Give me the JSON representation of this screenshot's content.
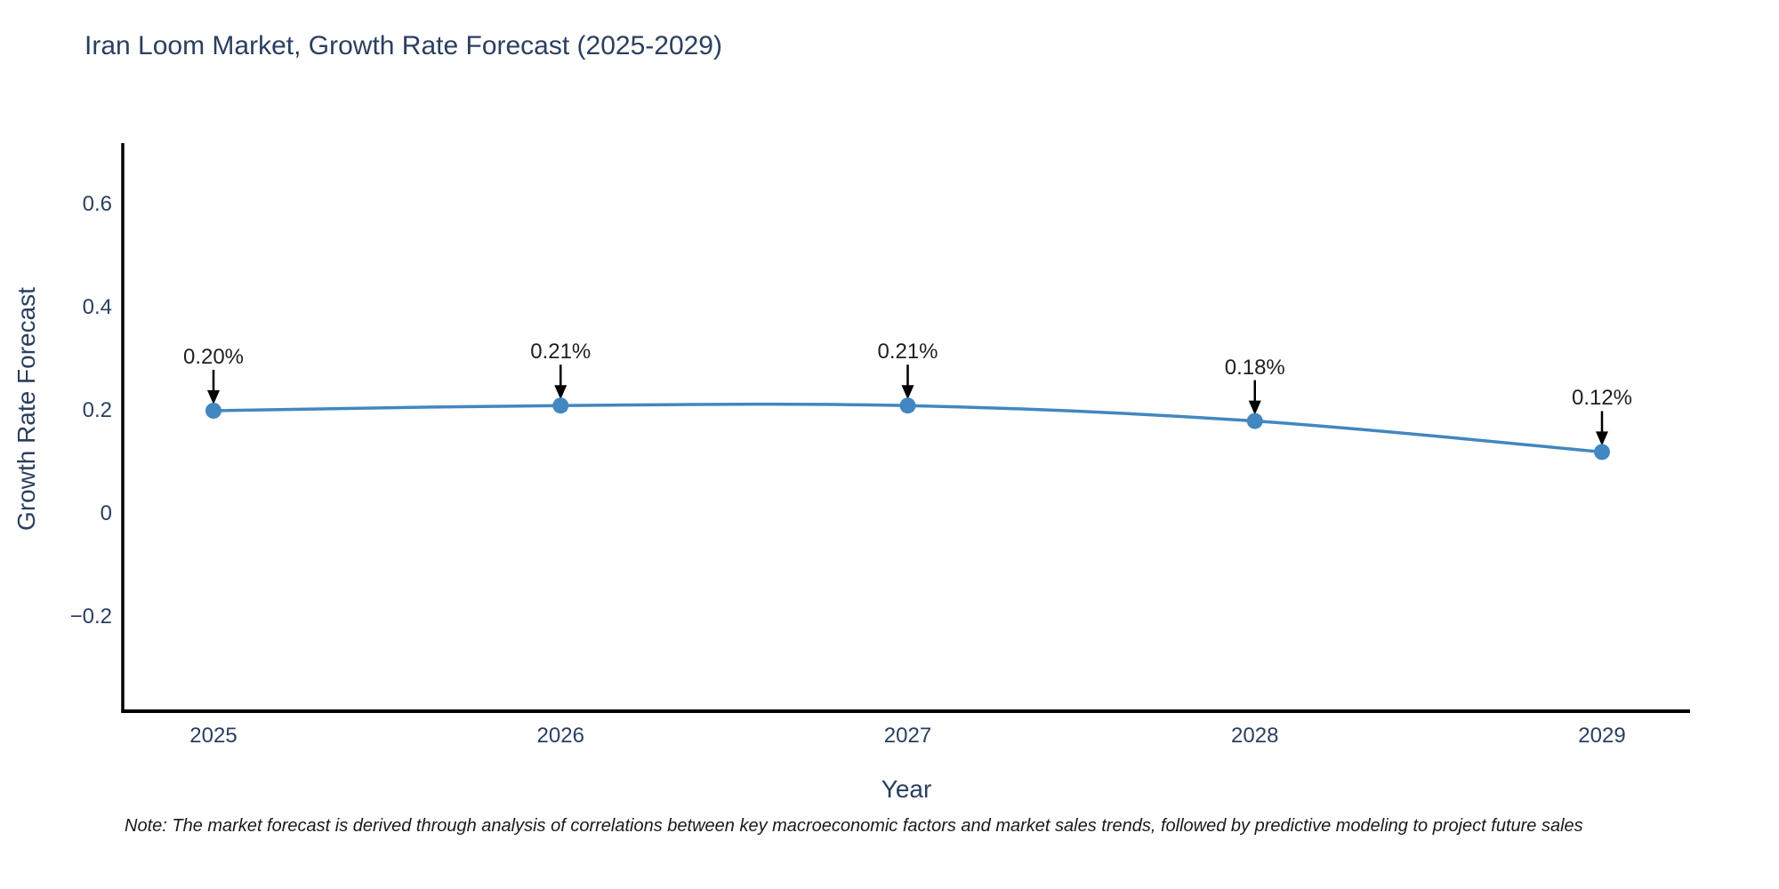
{
  "page": {
    "background": "#ffffff"
  },
  "chart_data": {
    "type": "line",
    "title": "Iran Loom Market, Growth Rate Forecast (2025-2029)",
    "xlabel": "Year",
    "ylabel": "Growth Rate Forecast",
    "categories": [
      "2025",
      "2026",
      "2027",
      "2028",
      "2029"
    ],
    "series": [
      {
        "name": "Growth Rate Forecast",
        "values": [
          0.2,
          0.21,
          0.21,
          0.18,
          0.12
        ]
      }
    ],
    "point_labels": [
      "0.20%",
      "0.21%",
      "0.21%",
      "0.18%",
      "0.12%"
    ],
    "ytick_labels": [
      "0.6",
      "0.4",
      "0.2",
      "0",
      "−0.2"
    ],
    "ytick_values": [
      0.6,
      0.4,
      0.2,
      0,
      -0.2
    ],
    "ylim": [
      -0.38,
      0.72
    ],
    "grid": false,
    "legend": "none",
    "line_color": "#4287c0",
    "marker_color": "#4287c0",
    "axis_color": "#000000",
    "arrow_color": "#000000",
    "annotation_color": "#1f1f1f",
    "text_color": "#2a3f5f",
    "note": "Note: The market forecast is derived through analysis of correlations between key macroeconomic factors and market sales trends, followed by predictive modeling to project future sales"
  }
}
